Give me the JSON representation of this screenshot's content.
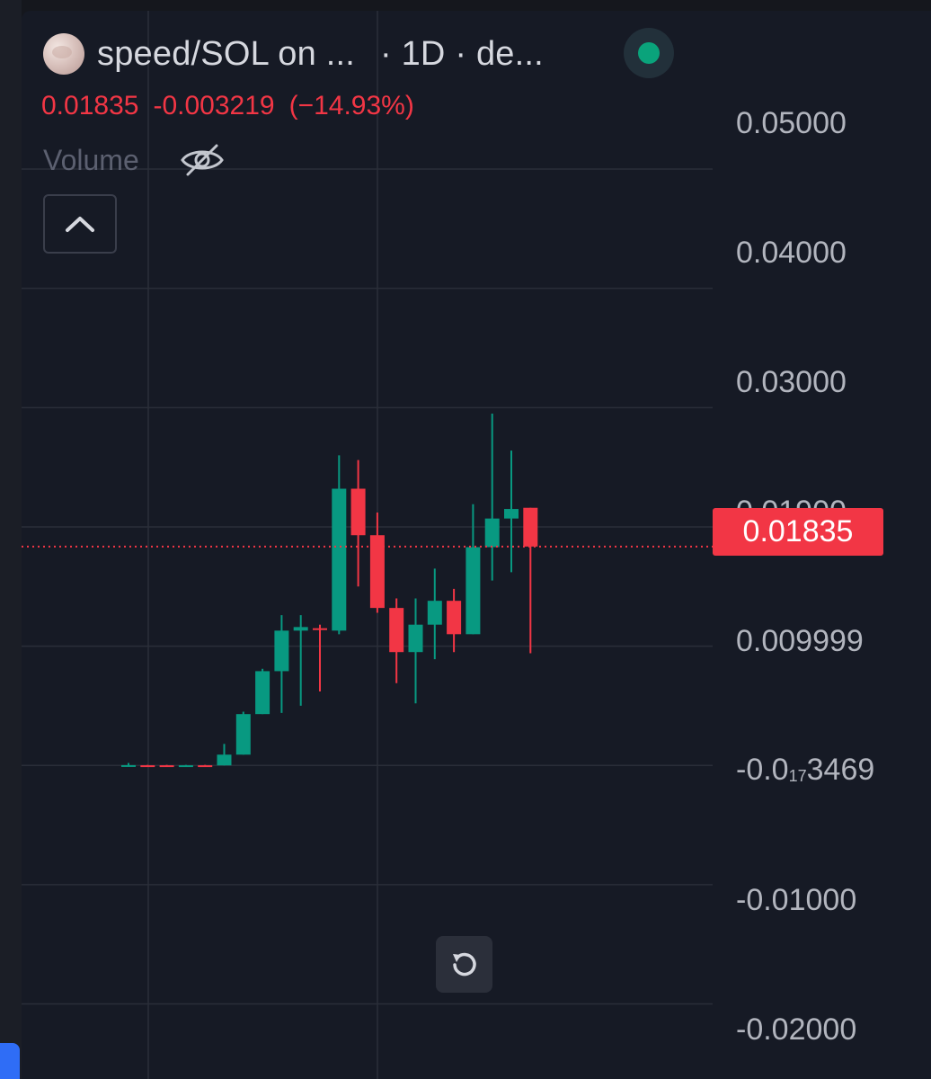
{
  "header": {
    "title": "speed/SOL on ...",
    "interval_text": "· 1D · de...",
    "status_color": "#0aa37b"
  },
  "price": {
    "last": "0.01835",
    "change": "-0.003219",
    "change_pct": "(−14.93%)",
    "color": "#f23645"
  },
  "volume": {
    "label": "Volume",
    "icon": "eye-off-icon"
  },
  "controls": {
    "collapse_icon": "chevron-up-icon",
    "reset_icon": "rotate-left-icon"
  },
  "colors": {
    "up": "#089981",
    "down": "#f23645",
    "background": "#161a25",
    "grid": "#2a2e39"
  },
  "chart_data": {
    "type": "candlestick",
    "title": "speed/SOL",
    "interval": "1D",
    "y_axis_labels": [
      "0.05000",
      "0.04000",
      "0.03000",
      "0.01900",
      "0.009999",
      "-0.0",
      "-0.01000",
      "-0.02000"
    ],
    "y_axis_special": {
      "main": "-0.0",
      "sub": "17",
      "rest": "3469"
    },
    "ylim": [
      -0.022,
      0.054
    ],
    "last_price": 0.01835,
    "last_price_label": "0.01835",
    "grid": true,
    "candles": [
      {
        "o": 1e-05,
        "h": 0.0002,
        "l": -0.0001,
        "c": 2e-05
      },
      {
        "o": 1e-05,
        "h": 4e-05,
        "l": -4e-05,
        "c": 0.0
      },
      {
        "o": 1e-05,
        "h": 4e-05,
        "l": -4e-05,
        "c": 0.0
      },
      {
        "o": 0.0,
        "h": 4e-05,
        "l": -4e-05,
        "c": 1e-05
      },
      {
        "o": 1e-05,
        "h": 4e-05,
        "l": -4e-05,
        "c": 0.0
      },
      {
        "o": 0.0,
        "h": 0.0018,
        "l": 0.0,
        "c": 0.0009
      },
      {
        "o": 0.0009,
        "h": 0.0045,
        "l": 0.0009,
        "c": 0.0043
      },
      {
        "o": 0.0043,
        "h": 0.0081,
        "l": 0.0043,
        "c": 0.0079
      },
      {
        "o": 0.0079,
        "h": 0.0126,
        "l": 0.0044,
        "c": 0.0113
      },
      {
        "o": 0.0113,
        "h": 0.0126,
        "l": 0.005,
        "c": 0.0116
      },
      {
        "o": 0.0115,
        "h": 0.0118,
        "l": 0.0062,
        "c": 0.0114
      },
      {
        "o": 0.0113,
        "h": 0.026,
        "l": 0.011,
        "c": 0.0232
      },
      {
        "o": 0.0232,
        "h": 0.0256,
        "l": 0.015,
        "c": 0.0193
      },
      {
        "o": 0.0193,
        "h": 0.0212,
        "l": 0.0128,
        "c": 0.0132
      },
      {
        "o": 0.0132,
        "h": 0.014,
        "l": 0.0069,
        "c": 0.0095
      },
      {
        "o": 0.0095,
        "h": 0.014,
        "l": 0.0052,
        "c": 0.0118
      },
      {
        "o": 0.0118,
        "h": 0.0165,
        "l": 0.0089,
        "c": 0.0138
      },
      {
        "o": 0.0138,
        "h": 0.0148,
        "l": 0.0095,
        "c": 0.011
      },
      {
        "o": 0.011,
        "h": 0.0219,
        "l": 0.011,
        "c": 0.0183
      },
      {
        "o": 0.0183,
        "h": 0.0295,
        "l": 0.0155,
        "c": 0.0207
      },
      {
        "o": 0.0207,
        "h": 0.0264,
        "l": 0.0162,
        "c": 0.0215
      },
      {
        "o": 0.0216,
        "h": 0.0216,
        "l": 0.0094,
        "c": 0.01835
      }
    ]
  }
}
